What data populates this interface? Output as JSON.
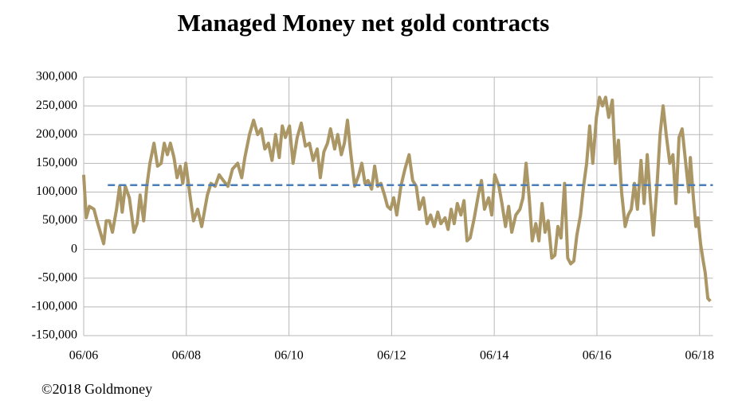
{
  "chart_data": {
    "type": "line",
    "title": "Managed Money net gold contracts",
    "source": "©2018 Goldmoney",
    "series": [
      {
        "name": "Managed Money net gold contracts",
        "color": "#ab9765",
        "x": [
          2006.42,
          2006.47,
          2006.53,
          2006.62,
          2006.68,
          2006.76,
          2006.81,
          2006.86,
          2006.92,
          2006.98,
          2007.06,
          2007.12,
          2007.17,
          2007.23,
          2007.31,
          2007.4,
          2007.46,
          2007.52,
          2007.59,
          2007.65,
          2007.71,
          2007.79,
          2007.86,
          2007.93,
          2007.99,
          2008.05,
          2008.11,
          2008.18,
          2008.24,
          2008.3,
          2008.35,
          2008.41,
          2008.49,
          2008.56,
          2008.64,
          2008.72,
          2008.83,
          2008.9,
          2008.98,
          2009.06,
          2009.14,
          2009.23,
          2009.32,
          2009.42,
          2009.5,
          2009.56,
          2009.65,
          2009.73,
          2009.81,
          2009.88,
          2009.95,
          2010.02,
          2010.09,
          2010.16,
          2010.23,
          2010.29,
          2010.35,
          2010.43,
          2010.5,
          2010.58,
          2010.66,
          2010.74,
          2010.82,
          2010.89,
          2010.97,
          2011.03,
          2011.1,
          2011.17,
          2011.23,
          2011.31,
          2011.37,
          2011.44,
          2011.5,
          2011.56,
          2011.62,
          2011.7,
          2011.78,
          2011.84,
          2011.9,
          2011.96,
          2012.03,
          2012.09,
          2012.15,
          2012.21,
          2012.28,
          2012.34,
          2012.4,
          2012.46,
          2012.52,
          2012.6,
          2012.68,
          2012.76,
          2012.83,
          2012.9,
          2012.96,
          2013.04,
          2013.11,
          2013.18,
          2013.25,
          2013.32,
          2013.38,
          2013.46,
          2013.52,
          2013.58,
          2013.64,
          2013.7,
          2013.77,
          2013.83,
          2013.89,
          2013.95,
          2014.03,
          2014.11,
          2014.17,
          2014.23,
          2014.31,
          2014.37,
          2014.43,
          2014.51,
          2014.57,
          2014.64,
          2014.7,
          2014.76,
          2014.84,
          2014.92,
          2014.98,
          2015.04,
          2015.1,
          2015.16,
          2015.23,
          2015.29,
          2015.35,
          2015.41,
          2015.47,
          2015.54,
          2015.6,
          2015.66,
          2015.72,
          2015.79,
          2015.85,
          2015.91,
          2015.97,
          2016.03,
          2016.1,
          2016.16,
          2016.22,
          2016.28,
          2016.34,
          2016.41,
          2016.47,
          2016.53,
          2016.59,
          2016.65,
          2016.72,
          2016.78,
          2016.84,
          2016.9,
          2016.97,
          2017.03,
          2017.09,
          2017.15,
          2017.21,
          2017.28,
          2017.34,
          2017.4,
          2017.46,
          2017.52,
          2017.59,
          2017.65,
          2017.71,
          2017.77,
          2017.84,
          2017.9,
          2017.96,
          2018.02,
          2018.08,
          2018.15,
          2018.21,
          2018.24,
          2018.3,
          2018.35,
          2018.39,
          2018.44,
          2018.49,
          2018.53,
          2018.58,
          2018.63
        ],
        "values": [
          130000,
          55000,
          75000,
          70000,
          50000,
          25000,
          10000,
          50000,
          50000,
          30000,
          70000,
          110000,
          65000,
          110000,
          90000,
          30000,
          45000,
          95000,
          50000,
          110000,
          150000,
          185000,
          145000,
          150000,
          185000,
          165000,
          185000,
          160000,
          125000,
          145000,
          115000,
          150000,
          95000,
          50000,
          70000,
          40000,
          95000,
          115000,
          110000,
          130000,
          120000,
          110000,
          140000,
          150000,
          125000,
          160000,
          200000,
          225000,
          200000,
          210000,
          175000,
          185000,
          155000,
          200000,
          160000,
          215000,
          195000,
          215000,
          150000,
          195000,
          220000,
          180000,
          185000,
          155000,
          175000,
          125000,
          170000,
          185000,
          210000,
          175000,
          200000,
          165000,
          185000,
          225000,
          170000,
          110000,
          130000,
          150000,
          115000,
          120000,
          105000,
          145000,
          110000,
          115000,
          95000,
          75000,
          70000,
          90000,
          60000,
          110000,
          140000,
          165000,
          120000,
          110000,
          70000,
          90000,
          45000,
          60000,
          40000,
          65000,
          45000,
          55000,
          35000,
          70000,
          45000,
          80000,
          60000,
          85000,
          15000,
          20000,
          55000,
          95000,
          120000,
          70000,
          90000,
          60000,
          130000,
          110000,
          80000,
          40000,
          75000,
          30000,
          60000,
          70000,
          90000,
          150000,
          90000,
          15000,
          45000,
          15000,
          80000,
          30000,
          50000,
          -15000,
          -10000,
          40000,
          20000,
          115000,
          -15000,
          -25000,
          -20000,
          25000,
          60000,
          110000,
          150000,
          215000,
          150000,
          230000,
          265000,
          250000,
          265000,
          230000,
          260000,
          150000,
          190000,
          100000,
          40000,
          60000,
          70000,
          115000,
          70000,
          155000,
          80000,
          165000,
          90000,
          25000,
          110000,
          200000,
          250000,
          200000,
          150000,
          165000,
          80000,
          195000,
          210000,
          150000,
          100000,
          160000,
          90000,
          40000,
          55000,
          10000,
          -20000,
          -40000,
          -85000,
          -90000
        ]
      }
    ],
    "reference_line": {
      "value": 112000,
      "x": [
        2006.89,
        2018.68
      ],
      "color": "#4a7ebb"
    },
    "xlim": [
      2006.42,
      2018.68
    ],
    "xticks": [
      {
        "value": 2006.42,
        "label": "06/06"
      },
      {
        "value": 2008.42,
        "label": "06/08"
      },
      {
        "value": 2010.42,
        "label": "06/10"
      },
      {
        "value": 2012.42,
        "label": "06/12"
      },
      {
        "value": 2014.42,
        "label": "06/14"
      },
      {
        "value": 2016.42,
        "label": "06/16"
      },
      {
        "value": 2018.42,
        "label": "06/18"
      }
    ],
    "ylim": [
      -150000,
      300000
    ],
    "yticks": [
      {
        "value": -150000,
        "label": "-150,000"
      },
      {
        "value": -100000,
        "label": "-100,000"
      },
      {
        "value": -50000,
        "label": "-50,000"
      },
      0,
      {
        "value": 50000,
        "label": "50,000"
      },
      {
        "value": 100000,
        "label": "100,000"
      },
      {
        "value": 150000,
        "label": "150,000"
      },
      {
        "value": 200000,
        "label": "200,000"
      },
      {
        "value": 250000,
        "label": "250,000"
      },
      {
        "value": 300000,
        "label": "300,000"
      }
    ],
    "grid": true
  }
}
